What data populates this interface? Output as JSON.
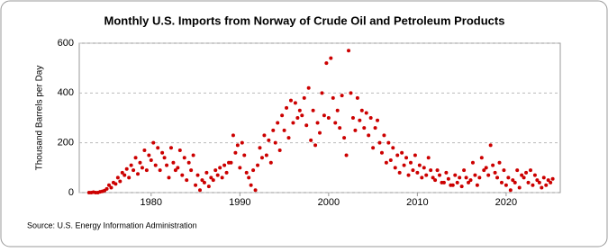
{
  "chart_data": {
    "type": "scatter",
    "title": "Monthly U.S. Imports from Norway of Crude Oil and Petroleum Products",
    "y_label": "Thousand Barrels per Day",
    "source": "Source: U.S. Energy Information Administration",
    "color": "#cc0000",
    "grid": true,
    "xlim": [
      1971.9,
      2026.1
    ],
    "xticks": [
      1980,
      1990,
      2000,
      2010,
      2020
    ],
    "ylim": [
      0,
      600
    ],
    "yticks": [
      0,
      200,
      400,
      600
    ],
    "x": [
      1973,
      1973.25,
      1973.5,
      1973.75,
      1974,
      1974.25,
      1974.5,
      1974.75,
      1975,
      1975.25,
      1975.5,
      1975.75,
      1976,
      1976.25,
      1976.5,
      1976.75,
      1977,
      1977.25,
      1977.5,
      1977.75,
      1978,
      1978.25,
      1978.5,
      1978.75,
      1979,
      1979.25,
      1979.5,
      1979.75,
      1980,
      1980.25,
      1980.5,
      1980.75,
      1981,
      1981.25,
      1981.5,
      1981.75,
      1982,
      1982.25,
      1982.5,
      1982.75,
      1983,
      1983.25,
      1983.5,
      1983.75,
      1984,
      1984.25,
      1984.5,
      1984.75,
      1985,
      1985.25,
      1985.5,
      1985.75,
      1986,
      1986.25,
      1986.5,
      1986.75,
      1987,
      1987.25,
      1987.5,
      1987.75,
      1988,
      1988.25,
      1988.5,
      1988.75,
      1989,
      1989.25,
      1989.5,
      1989.75,
      1990,
      1990.25,
      1990.5,
      1990.75,
      1991,
      1991.25,
      1991.5,
      1991.75,
      1992,
      1992.25,
      1992.5,
      1992.75,
      1993,
      1993.25,
      1993.5,
      1993.75,
      1994,
      1994.25,
      1994.5,
      1994.75,
      1995,
      1995.25,
      1995.5,
      1995.75,
      1996,
      1996.25,
      1996.5,
      1996.75,
      1997,
      1997.25,
      1997.5,
      1997.75,
      1998,
      1998.25,
      1998.5,
      1998.75,
      1999,
      1999.25,
      1999.5,
      1999.75,
      2000,
      2000.25,
      2000.5,
      2000.75,
      2001,
      2001.25,
      2001.5,
      2001.75,
      2002,
      2002.25,
      2002.5,
      2002.75,
      2003,
      2003.25,
      2003.5,
      2003.75,
      2004,
      2004.25,
      2004.5,
      2004.75,
      2005,
      2005.25,
      2005.5,
      2005.75,
      2006,
      2006.25,
      2006.5,
      2006.75,
      2007,
      2007.25,
      2007.5,
      2007.75,
      2008,
      2008.25,
      2008.5,
      2008.75,
      2009,
      2009.25,
      2009.5,
      2009.75,
      2010,
      2010.25,
      2010.5,
      2010.75,
      2011,
      2011.25,
      2011.5,
      2011.75,
      2012,
      2012.25,
      2012.5,
      2012.75,
      2013,
      2013.25,
      2013.5,
      2013.75,
      2014,
      2014.25,
      2014.5,
      2014.75,
      2015,
      2015.25,
      2015.5,
      2015.75,
      2016,
      2016.25,
      2016.5,
      2016.75,
      2017,
      2017.25,
      2017.5,
      2017.75,
      2018,
      2018.25,
      2018.5,
      2018.75,
      2019,
      2019.25,
      2019.5,
      2019.75,
      2020,
      2020.25,
      2020.5,
      2020.75,
      2021,
      2021.25,
      2021.5,
      2021.75,
      2022,
      2022.25,
      2022.5,
      2022.75,
      2023,
      2023.25,
      2023.5,
      2023.75,
      2024,
      2024.25,
      2024.5,
      2024.75,
      2025,
      2025.25
    ],
    "values": [
      0,
      0,
      2,
      0,
      0,
      3,
      5,
      8,
      15,
      30,
      20,
      40,
      35,
      60,
      45,
      80,
      70,
      95,
      60,
      110,
      90,
      140,
      75,
      120,
      100,
      170,
      90,
      150,
      130,
      200,
      110,
      180,
      90,
      160,
      140,
      110,
      60,
      180,
      120,
      90,
      100,
      170,
      70,
      140,
      50,
      120,
      90,
      150,
      30,
      70,
      10,
      50,
      40,
      80,
      25,
      60,
      50,
      90,
      70,
      100,
      60,
      110,
      80,
      120,
      120,
      230,
      160,
      190,
      100,
      200,
      150,
      80,
      60,
      30,
      90,
      10,
      110,
      180,
      140,
      230,
      150,
      210,
      120,
      250,
      200,
      280,
      170,
      310,
      250,
      340,
      220,
      370,
      280,
      360,
      300,
      330,
      310,
      380,
      270,
      420,
      210,
      330,
      190,
      280,
      240,
      400,
      310,
      520,
      300,
      540,
      380,
      280,
      330,
      260,
      390,
      220,
      150,
      570,
      400,
      300,
      250,
      380,
      290,
      330,
      260,
      320,
      230,
      300,
      180,
      260,
      290,
      200,
      160,
      230,
      120,
      200,
      130,
      180,
      100,
      150,
      80,
      160,
      110,
      140,
      70,
      120,
      90,
      150,
      80,
      110,
      60,
      100,
      70,
      140,
      90,
      60,
      50,
      90,
      70,
      40,
      40,
      80,
      55,
      30,
      30,
      70,
      40,
      60,
      25,
      90,
      60,
      40,
      50,
      120,
      70,
      30,
      60,
      140,
      90,
      100,
      70,
      190,
      110,
      80,
      60,
      120,
      40,
      90,
      30,
      60,
      10,
      50,
      40,
      90,
      20,
      70,
      60,
      80,
      40,
      90,
      30,
      70,
      50,
      40,
      20,
      60,
      30,
      50,
      40,
      55
    ]
  }
}
